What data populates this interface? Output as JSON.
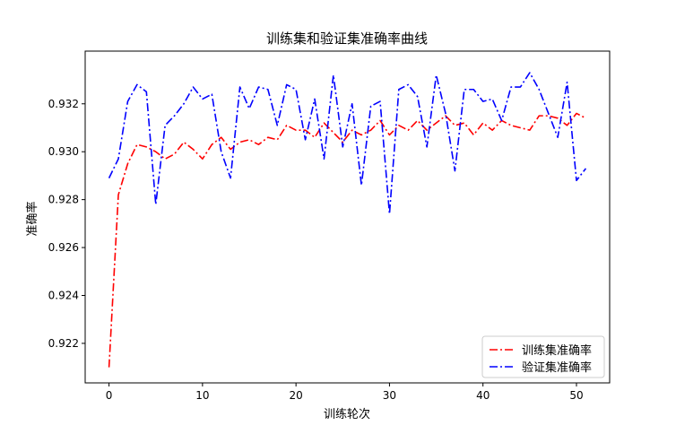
{
  "chart_data": {
    "type": "line",
    "title": "训练集和验证集准确率曲线",
    "xlabel": "训练轮次",
    "ylabel": "准确率",
    "xlim": [
      -2.55,
      53.55
    ],
    "ylim": [
      0.92035,
      0.9342
    ],
    "xticks": [
      0,
      10,
      20,
      30,
      40,
      50
    ],
    "yticks": [
      0.922,
      0.924,
      0.926,
      0.928,
      0.93,
      0.932
    ],
    "ytick_labels": [
      "0.922",
      "0.924",
      "0.926",
      "0.928",
      "0.930",
      "0.932"
    ],
    "grid": false,
    "legend_position": "lower-right",
    "series": [
      {
        "name": "训练集准确率",
        "color": "#ff0000",
        "dash": "dash-dot",
        "x": [
          0,
          1,
          2,
          3,
          4,
          5,
          6,
          7,
          8,
          9,
          10,
          11,
          12,
          13,
          14,
          15,
          16,
          17,
          18,
          19,
          20,
          21,
          22,
          23,
          24,
          25,
          26,
          27,
          28,
          29,
          30,
          31,
          32,
          33,
          34,
          35,
          36,
          37,
          38,
          39,
          40,
          41,
          42,
          43,
          44,
          45,
          46,
          47,
          48,
          49,
          50,
          51
        ],
        "values": [
          0.921,
          0.9282,
          0.9295,
          0.9303,
          0.9302,
          0.93,
          0.9297,
          0.9299,
          0.9304,
          0.9301,
          0.9297,
          0.9303,
          0.9306,
          0.9301,
          0.9304,
          0.9305,
          0.9303,
          0.9306,
          0.9305,
          0.9311,
          0.9309,
          0.9309,
          0.9306,
          0.9312,
          0.9308,
          0.9304,
          0.9309,
          0.9307,
          0.9309,
          0.9313,
          0.9307,
          0.9311,
          0.9309,
          0.9313,
          0.9309,
          0.9312,
          0.9315,
          0.9311,
          0.9312,
          0.9307,
          0.9312,
          0.9309,
          0.9313,
          0.9311,
          0.931,
          0.9309,
          0.9315,
          0.9315,
          0.9314,
          0.9311,
          0.9316,
          0.9314
        ]
      },
      {
        "name": "验证集准确率",
        "color": "#0000ff",
        "dash": "dash-dot",
        "x": [
          0,
          1,
          2,
          3,
          4,
          5,
          6,
          7,
          8,
          9,
          10,
          11,
          12,
          13,
          14,
          15,
          16,
          17,
          18,
          19,
          20,
          21,
          22,
          23,
          24,
          25,
          26,
          27,
          28,
          29,
          30,
          31,
          32,
          33,
          34,
          35,
          36,
          37,
          38,
          39,
          40,
          41,
          42,
          43,
          44,
          45,
          46,
          47,
          48,
          49,
          50,
          51
        ],
        "values": [
          0.9289,
          0.9297,
          0.9321,
          0.9328,
          0.9325,
          0.9278,
          0.9311,
          0.9315,
          0.932,
          0.9327,
          0.9322,
          0.9324,
          0.93,
          0.9289,
          0.9327,
          0.9318,
          0.9327,
          0.9326,
          0.9311,
          0.9328,
          0.9326,
          0.9305,
          0.9322,
          0.9297,
          0.9332,
          0.9302,
          0.932,
          0.9286,
          0.9319,
          0.9321,
          0.9274,
          0.9326,
          0.9328,
          0.9323,
          0.9302,
          0.9332,
          0.9316,
          0.9292,
          0.9326,
          0.9326,
          0.9321,
          0.9322,
          0.9313,
          0.9327,
          0.9327,
          0.9333,
          0.9326,
          0.9316,
          0.9306,
          0.9329,
          0.9288,
          0.9293
        ]
      }
    ]
  }
}
